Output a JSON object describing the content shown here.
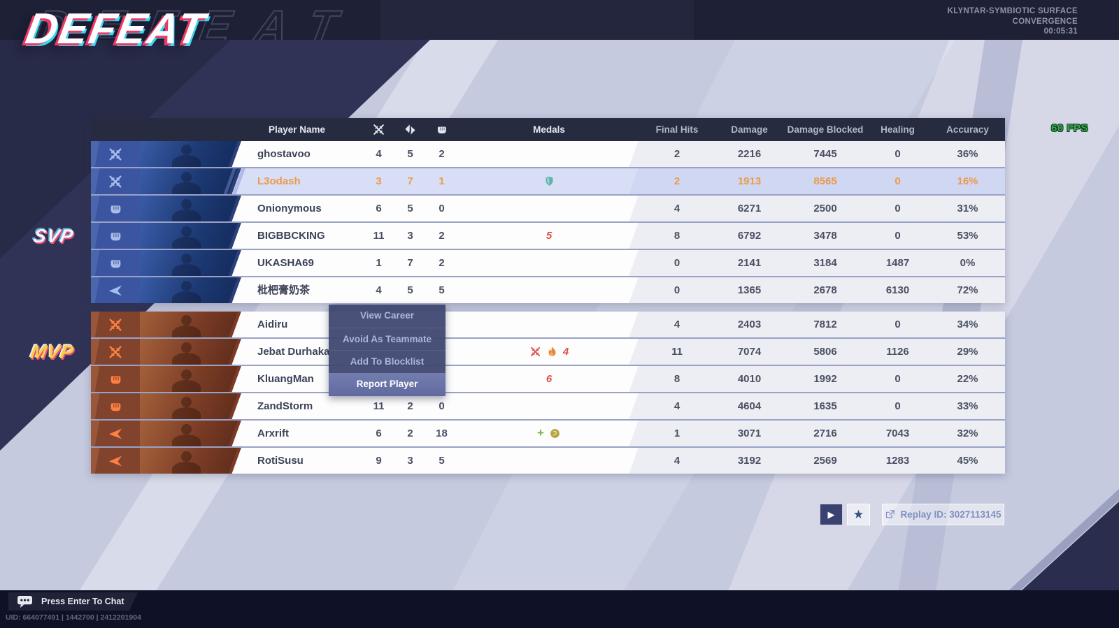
{
  "match": {
    "result": "DEFEAT",
    "map": "KLYNTAR-SYMBIOTIC SURFACE",
    "mode": "CONVERGENCE",
    "duration": "00:05:31",
    "fps": "60 FPS"
  },
  "labels": {
    "svp": "SVP",
    "mvp": "MVP"
  },
  "scoreboard": {
    "header": {
      "player_name": "Player Name",
      "kills_icon": "kills-icon",
      "deaths_icon": "deaths-icon",
      "assists_icon": "assists-icon",
      "medals": "Medals",
      "final_hits": "Final Hits",
      "damage": "Damage",
      "damage_blocked": "Damage Blocked",
      "healing": "Healing",
      "accuracy": "Accuracy"
    },
    "rows": [
      {
        "team": "blue",
        "role": "duelist",
        "name": "ghostavoo",
        "kills": "4",
        "deaths": "5",
        "assists": "2",
        "medals": [],
        "final_hits": "2",
        "damage": "2216",
        "damage_blocked": "7445",
        "healing": "0",
        "accuracy": "36%",
        "highlighted": false
      },
      {
        "team": "blue",
        "role": "duelist",
        "name": "L3odash",
        "kills": "3",
        "deaths": "7",
        "assists": "1",
        "medals": [
          {
            "name": "block-shield-medal",
            "type": "shield"
          }
        ],
        "final_hits": "2",
        "damage": "1913",
        "damage_blocked": "8565",
        "healing": "0",
        "accuracy": "16%",
        "highlighted": true
      },
      {
        "team": "blue",
        "role": "vanguard",
        "name": "Onionymous",
        "kills": "6",
        "deaths": "5",
        "assists": "0",
        "medals": [],
        "final_hits": "4",
        "damage": "6271",
        "damage_blocked": "2500",
        "healing": "0",
        "accuracy": "31%",
        "highlighted": false
      },
      {
        "team": "blue",
        "role": "vanguard",
        "name": "BIGBBCKING",
        "kills": "11",
        "deaths": "3",
        "assists": "2",
        "medals": [
          {
            "name": "kill-streak-medal",
            "type": "number",
            "value": "5"
          }
        ],
        "final_hits": "8",
        "damage": "6792",
        "damage_blocked": "3478",
        "healing": "0",
        "accuracy": "53%",
        "highlighted": false
      },
      {
        "team": "blue",
        "role": "vanguard",
        "name": "UKASHA69",
        "kills": "1",
        "deaths": "7",
        "assists": "2",
        "medals": [],
        "final_hits": "0",
        "damage": "2141",
        "damage_blocked": "3184",
        "healing": "1487",
        "accuracy": "0%",
        "highlighted": false
      },
      {
        "team": "blue",
        "role": "strategist",
        "name": "枇杷膏奶茶",
        "kills": "4",
        "deaths": "5",
        "assists": "5",
        "medals": [],
        "final_hits": "0",
        "damage": "1365",
        "damage_blocked": "2678",
        "healing": "6130",
        "accuracy": "72%",
        "highlighted": false
      },
      {
        "team": "red",
        "role": "duelist",
        "name": "Aidiru",
        "kills": "",
        "deaths": "",
        "assists": "",
        "medals": [],
        "final_hits": "4",
        "damage": "2403",
        "damage_blocked": "7812",
        "healing": "0",
        "accuracy": "34%",
        "highlighted": false
      },
      {
        "team": "red",
        "role": "duelist",
        "name": "Jebat Durhaka",
        "kills": "",
        "deaths": "",
        "assists": "",
        "medals": [
          {
            "name": "ko-swords-medal",
            "type": "swords"
          },
          {
            "name": "flame-medal",
            "type": "flame"
          },
          {
            "name": "kill-streak-medal",
            "type": "number",
            "value": "4"
          }
        ],
        "final_hits": "11",
        "damage": "7074",
        "damage_blocked": "5806",
        "healing": "1126",
        "accuracy": "29%",
        "highlighted": false
      },
      {
        "team": "red",
        "role": "vanguard",
        "name": "KluangMan",
        "kills": "",
        "deaths": "",
        "assists": "",
        "medals": [
          {
            "name": "kill-streak-medal",
            "type": "number",
            "value": "6"
          }
        ],
        "final_hits": "8",
        "damage": "4010",
        "damage_blocked": "1992",
        "healing": "0",
        "accuracy": "22%",
        "highlighted": false
      },
      {
        "team": "red",
        "role": "vanguard",
        "name": "ZandStorm",
        "kills": "11",
        "deaths": "2",
        "assists": "0",
        "medals": [],
        "final_hits": "4",
        "damage": "4604",
        "damage_blocked": "1635",
        "healing": "0",
        "accuracy": "33%",
        "highlighted": false
      },
      {
        "team": "red",
        "role": "strategist",
        "name": "Arxrift",
        "kills": "6",
        "deaths": "2",
        "assists": "18",
        "medals": [
          {
            "name": "healing-medal",
            "type": "plus"
          },
          {
            "name": "assist-coin-medal",
            "type": "coin"
          }
        ],
        "final_hits": "1",
        "damage": "3071",
        "damage_blocked": "2716",
        "healing": "7043",
        "accuracy": "32%",
        "highlighted": false
      },
      {
        "team": "red",
        "role": "strategist",
        "name": "RotiSusu",
        "kills": "9",
        "deaths": "3",
        "assists": "5",
        "medals": [],
        "final_hits": "4",
        "damage": "3192",
        "damage_blocked": "2569",
        "healing": "1283",
        "accuracy": "45%",
        "highlighted": false
      }
    ]
  },
  "context_menu": {
    "items": [
      "View Career",
      "Avoid As Teammate",
      "Add To Blocklist",
      "Report Player"
    ],
    "active_item": "Report Player"
  },
  "replay": {
    "play_icon_glyph": "▶",
    "favorite_icon_glyph": "★",
    "label": "Replay ID: 3027113145"
  },
  "footer": {
    "chat_prompt": "Press Enter To Chat",
    "uid": "UID: 664077491 | 1442700 | 2412201904"
  },
  "colors": {
    "accent_highlight_text": "#ec9a4c",
    "blue_team": "#3b55a0",
    "red_team": "#82432c",
    "fps_green": "#2fb14b",
    "medal_red": "#e04f44",
    "medal_teal": "#5fb3ac",
    "medal_green": "#76b34a",
    "medal_gold": "#b3a447"
  }
}
